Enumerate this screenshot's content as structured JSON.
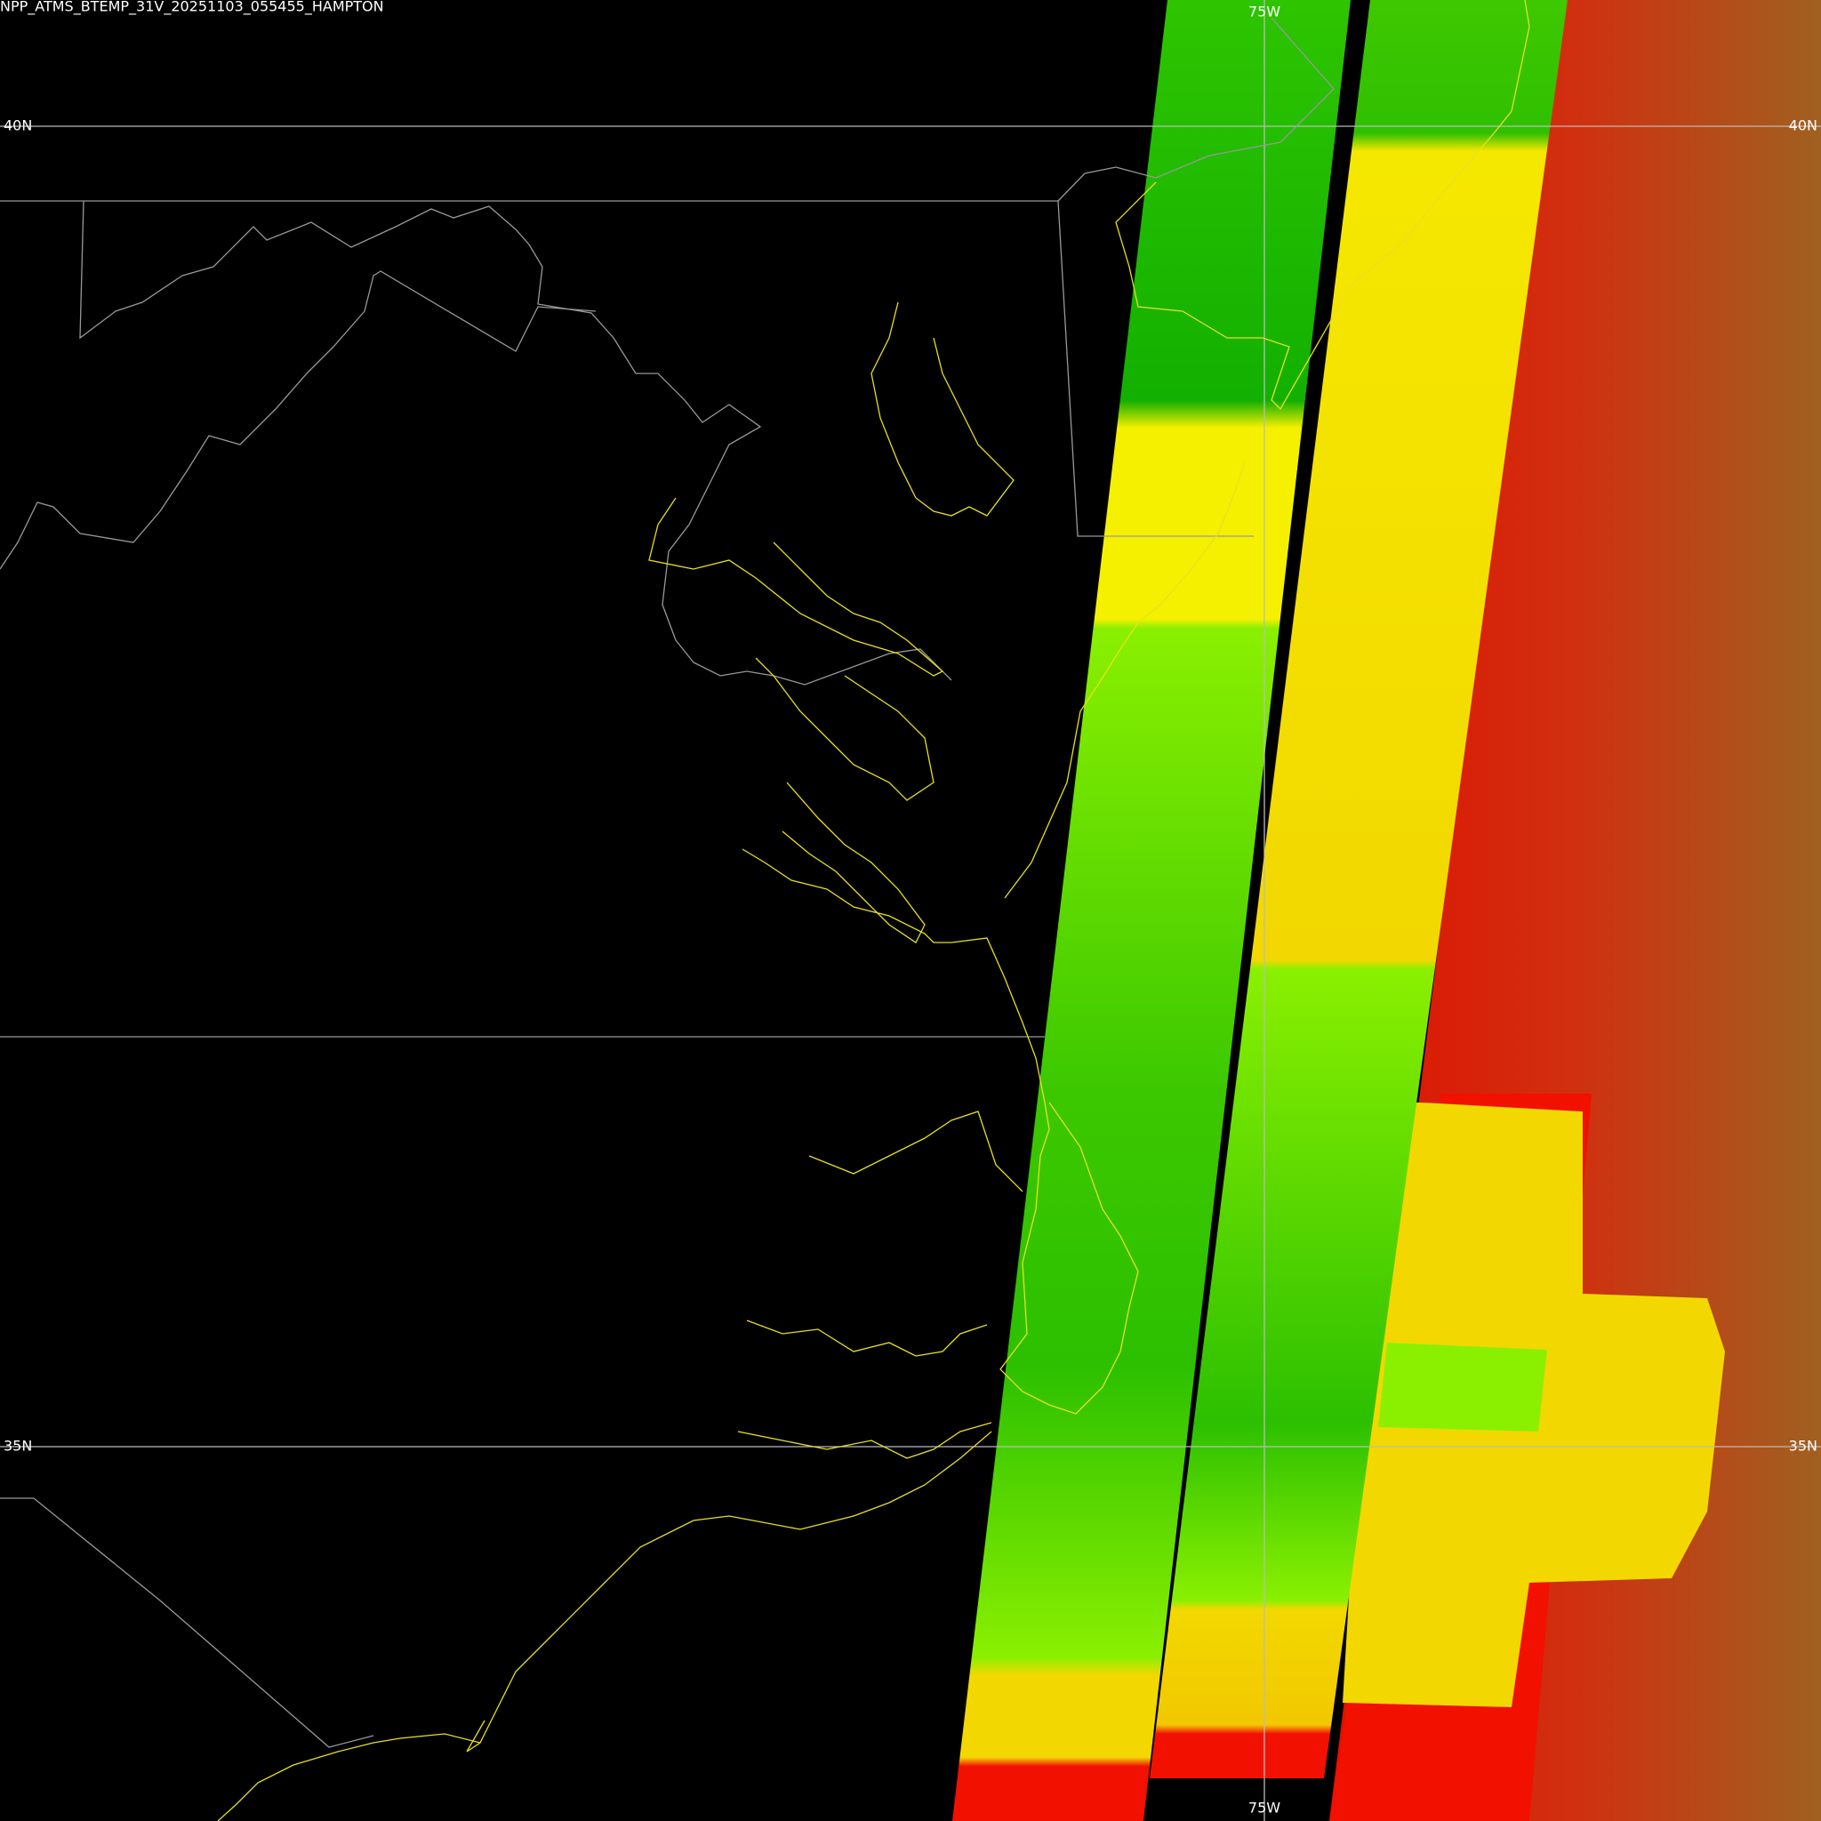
{
  "header": {
    "title": "NPP_ATMS_BTEMP_31V_20251103_055455_HAMPTON"
  },
  "graticule": {
    "meridians": [
      {
        "label": "75W"
      }
    ],
    "parallels": [
      {
        "label": "40N"
      },
      {
        "label": "35N"
      }
    ]
  }
}
